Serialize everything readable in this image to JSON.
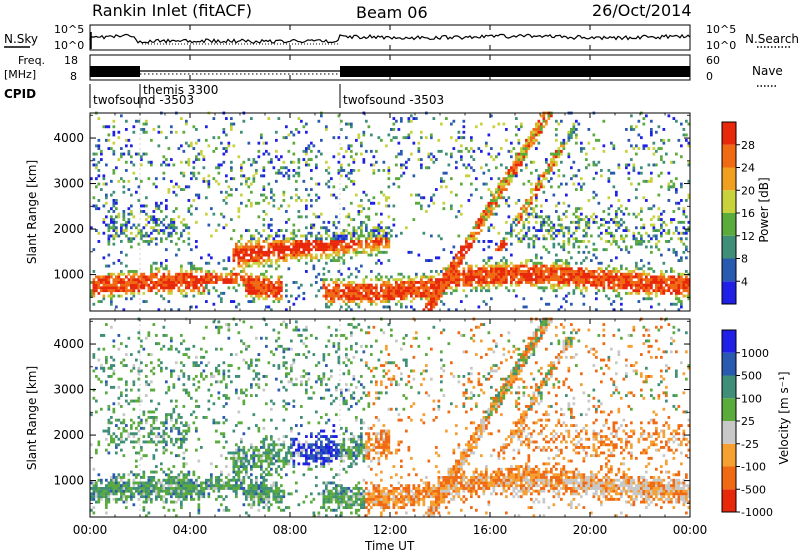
{
  "header": {
    "station": "Rankin Inlet (fitACF)",
    "beam": "Beam 06",
    "date": "26/Oct/2014"
  },
  "nsky_panel": {
    "left_label": "N.Sky",
    "left_ticks": [
      "10^5",
      "10^0"
    ],
    "right_ticks": [
      "10^5",
      "10^0"
    ],
    "right_label": "N.Search"
  },
  "freq_panel": {
    "left_label_top": "Freq.",
    "left_label_bottom": "[MHz]",
    "left_ticks": [
      "18",
      "8"
    ],
    "right_ticks": [
      "60",
      "0"
    ],
    "right_label": "Nave"
  },
  "cpid": {
    "label": "CPID",
    "segments": [
      {
        "label": "twofsound -3503",
        "start_hour": 0,
        "end_hour": 2.0
      },
      {
        "label": "themis 3300",
        "start_hour": 2.0,
        "end_hour": 10.0
      },
      {
        "label": "twofsound -3503",
        "start_hour": 10.0,
        "end_hour": 24
      }
    ]
  },
  "x_axis": {
    "label": "Time UT",
    "ticks": [
      "00:00",
      "04:00",
      "08:00",
      "12:00",
      "16:00",
      "20:00",
      "00:00"
    ]
  },
  "colors": {
    "power_scale": [
      "#1f1fe6",
      "#2a5ab0",
      "#3f8f78",
      "#5aaa3c",
      "#c8d23c",
      "#f0a020",
      "#f06a14",
      "#e8280a"
    ],
    "velocity_scale": [
      "#e8280a",
      "#f06a14",
      "#f5a030",
      "#c8c8c8",
      "#5aaa3c",
      "#3f8f78",
      "#2a5ab0",
      "#1f1fe6"
    ]
  },
  "chart_data": [
    {
      "type": "heatmap",
      "title": "Power",
      "xlabel": "Time UT",
      "ylabel": "Slant Range [km]",
      "yticks": [
        1000,
        2000,
        3000,
        4000
      ],
      "ylim": [
        200,
        4550
      ],
      "xlim": [
        0,
        24
      ],
      "colorbar": {
        "label": "Power [dB]",
        "ticks": [
          "4",
          "8",
          "12",
          "16",
          "20",
          "24",
          "28"
        ]
      }
    },
    {
      "type": "heatmap",
      "title": "Velocity",
      "xlabel": "Time UT",
      "ylabel": "Slant Range [km]",
      "yticks": [
        1000,
        2000,
        3000,
        4000
      ],
      "ylim": [
        200,
        4550
      ],
      "xlim": [
        0,
        24
      ],
      "colorbar": {
        "label": "Velocity [m s⁻¹]",
        "ticks": [
          "1000",
          "500",
          "100",
          "25",
          "-25",
          "-100",
          "-500",
          "-1000"
        ]
      }
    }
  ]
}
